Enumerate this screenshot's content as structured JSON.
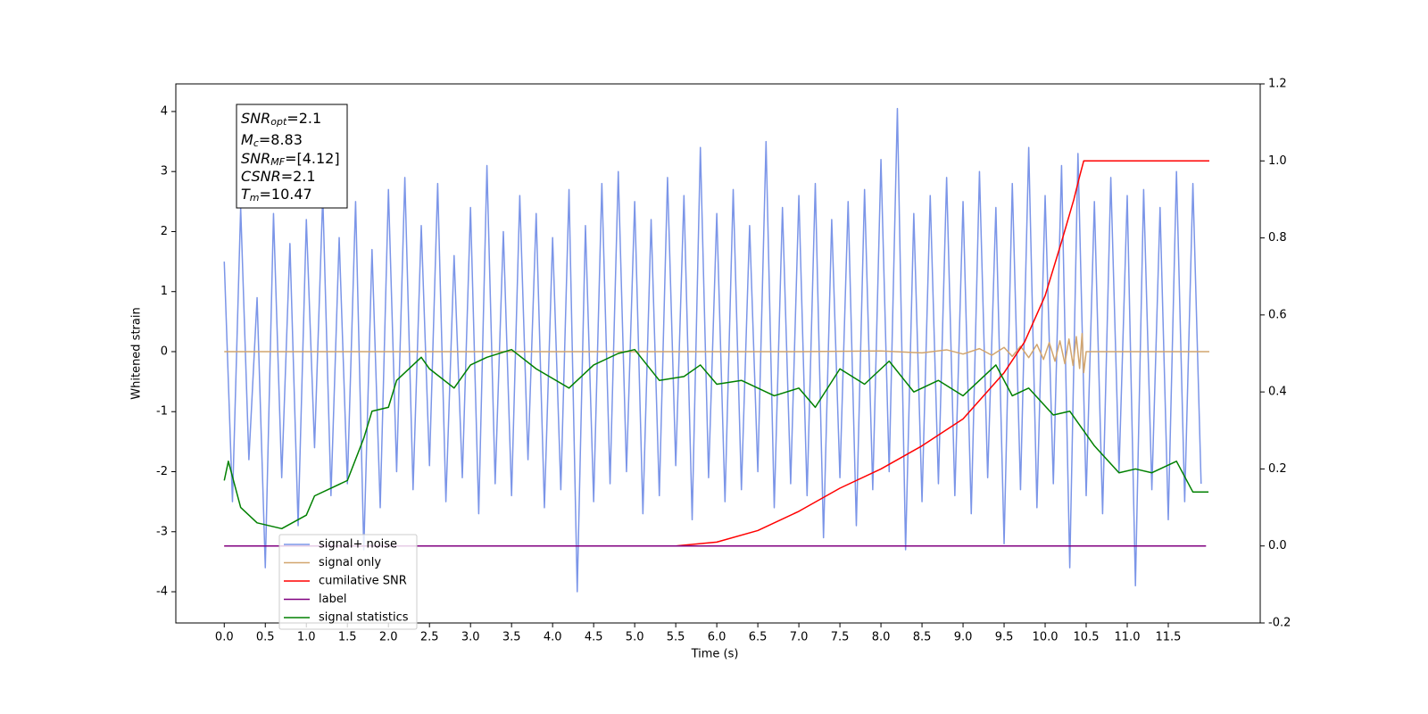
{
  "chart_data": {
    "type": "line",
    "xlabel": "Time (s)",
    "ylabel": "Whitened strain",
    "xlim": [
      -0.59,
      12.62
    ],
    "ylim": [
      -4.52,
      4.46
    ],
    "y2lim": [
      -0.2,
      1.2
    ],
    "xticks": [
      {
        "value": 0,
        "label": "0.0"
      },
      0.5,
      {
        "value": 1,
        "label": "1.0"
      },
      1.5,
      {
        "value": 2,
        "label": "2.0"
      },
      2.5,
      {
        "value": 3,
        "label": "3.0"
      },
      3.5,
      {
        "value": 4,
        "label": "4.0"
      },
      4.5,
      {
        "value": 5,
        "label": "5.0"
      },
      5.5,
      {
        "value": 6,
        "label": "6.0"
      },
      6.5,
      {
        "value": 7,
        "label": "7.0"
      },
      7.5,
      {
        "value": 8,
        "label": "8.0"
      },
      8.5,
      {
        "value": 9,
        "label": "9.0"
      },
      9.5,
      {
        "value": 10,
        "label": "10.0"
      },
      10.5,
      {
        "value": 11,
        "label": "11.0"
      },
      11.5
    ],
    "yticks": [
      -4,
      -3,
      -2,
      -1,
      0,
      1,
      2,
      3,
      4
    ],
    "y2ticks": [
      -0.2,
      {
        "value": 0,
        "label": "0.0"
      },
      0.2,
      0.4,
      0.6,
      0.8,
      {
        "value": 1,
        "label": "1.0"
      },
      1.2
    ],
    "legend": "lower left",
    "annotation": {
      "lines": [
        {
          "base": "SNR",
          "sub": "opt",
          "rest": "=2.1"
        },
        {
          "base": "M",
          "sub": "c",
          "rest": "=8.83"
        },
        {
          "base": "SNR",
          "sub": "MF",
          "rest": "=[4.12]"
        },
        {
          "base": "CSNR",
          "rest": "=2.1"
        },
        {
          "base": "T",
          "sub": "m",
          "rest": "=10.47"
        }
      ]
    },
    "series": [
      {
        "name": "signal+ noise",
        "color": "#7b95e8",
        "x": [
          0.0,
          0.1,
          0.2,
          0.3,
          0.4,
          0.5,
          0.6,
          0.7,
          0.8,
          0.9,
          1.0,
          1.1,
          1.2,
          1.3,
          1.4,
          1.5,
          1.6,
          1.7,
          1.8,
          1.9,
          2.0,
          2.1,
          2.2,
          2.3,
          2.4,
          2.5,
          2.6,
          2.7,
          2.8,
          2.9,
          3.0,
          3.1,
          3.2,
          3.3,
          3.4,
          3.5,
          3.6,
          3.7,
          3.8,
          3.9,
          4.0,
          4.1,
          4.2,
          4.3,
          4.4,
          4.5,
          4.6,
          4.7,
          4.8,
          4.9,
          5.0,
          5.1,
          5.2,
          5.3,
          5.4,
          5.5,
          5.6,
          5.7,
          5.8,
          5.9,
          6.0,
          6.1,
          6.2,
          6.3,
          6.4,
          6.5,
          6.6,
          6.7,
          6.8,
          6.9,
          7.0,
          7.1,
          7.2,
          7.3,
          7.4,
          7.5,
          7.6,
          7.7,
          7.8,
          7.9,
          8.0,
          8.1,
          8.2,
          8.3,
          8.4,
          8.5,
          8.6,
          8.7,
          8.8,
          8.9,
          9.0,
          9.1,
          9.2,
          9.3,
          9.4,
          9.5,
          9.6,
          9.7,
          9.8,
          9.9,
          10.0,
          10.1,
          10.2,
          10.3,
          10.4,
          10.5,
          10.6,
          10.7,
          10.8,
          10.9,
          11.0,
          11.1,
          11.2,
          11.3,
          11.4,
          11.5,
          11.6,
          11.7,
          11.8,
          11.9
        ],
        "values": [
          1.5,
          -2.5,
          2.4,
          -1.8,
          0.9,
          -3.6,
          2.3,
          -2.1,
          1.8,
          -2.9,
          2.2,
          -1.6,
          2.6,
          -2.4,
          1.9,
          -2.2,
          2.5,
          -3.3,
          1.7,
          -2.6,
          2.7,
          -2.0,
          2.9,
          -2.3,
          2.1,
          -1.9,
          2.8,
          -2.5,
          1.6,
          -2.1,
          2.4,
          -2.7,
          3.1,
          -2.2,
          2.0,
          -2.4,
          2.6,
          -1.8,
          2.3,
          -2.6,
          1.9,
          -2.3,
          2.7,
          -4.0,
          2.1,
          -2.5,
          2.8,
          -2.2,
          3.0,
          -2.0,
          2.5,
          -2.7,
          2.2,
          -2.4,
          2.9,
          -1.9,
          2.6,
          -2.8,
          3.4,
          -2.1,
          2.3,
          -2.5,
          2.7,
          -2.3,
          2.1,
          -2.0,
          3.5,
          -2.6,
          2.4,
          -2.2,
          2.6,
          -2.4,
          2.8,
          -3.1,
          2.2,
          -2.1,
          2.5,
          -2.9,
          2.7,
          -2.3,
          3.2,
          -2.0,
          4.05,
          -3.3,
          2.3,
          -2.5,
          2.6,
          -2.2,
          2.9,
          -2.4,
          2.5,
          -2.7,
          3.0,
          -2.1,
          2.4,
          -3.2,
          2.8,
          -2.3,
          3.4,
          -2.6,
          2.6,
          -2.2,
          3.1,
          -3.6,
          3.3,
          -2.4,
          2.5,
          -2.7,
          2.9,
          -2.0,
          2.6,
          -3.9,
          2.7,
          -2.3,
          2.4,
          -2.8,
          3.0,
          -2.5,
          2.8,
          -2.2
        ]
      },
      {
        "name": "signal only",
        "color": "#d2a56e",
        "x": [
          0,
          7.0,
          8.0,
          8.5,
          8.8,
          9.0,
          9.2,
          9.35,
          9.5,
          9.6,
          9.7,
          9.8,
          9.9,
          9.98,
          10.05,
          10.12,
          10.18,
          10.24,
          10.29,
          10.34,
          10.38,
          10.42,
          10.45,
          10.47,
          10.5,
          12.0
        ],
        "values": [
          0,
          0,
          0.01,
          -0.02,
          0.03,
          -0.04,
          0.05,
          -0.06,
          0.07,
          -0.08,
          0.09,
          -0.1,
          0.12,
          -0.13,
          0.15,
          -0.16,
          0.18,
          -0.2,
          0.21,
          -0.23,
          0.25,
          -0.28,
          0.3,
          -0.35,
          0,
          0
        ]
      },
      {
        "name": "cumilative SNR",
        "color": "#ff0000",
        "axis": "y2",
        "x": [
          0,
          5.5,
          6.0,
          6.5,
          7.0,
          7.5,
          8.0,
          8.5,
          9.0,
          9.5,
          9.75,
          10.0,
          10.2,
          10.35,
          10.42,
          10.47,
          12.0
        ],
        "values": [
          0,
          0,
          0.01,
          0.04,
          0.09,
          0.15,
          0.2,
          0.26,
          0.33,
          0.45,
          0.53,
          0.65,
          0.79,
          0.9,
          0.96,
          1.0,
          1.0
        ]
      },
      {
        "name": "label",
        "color": "#800080",
        "axis": "y2",
        "x": [
          0,
          11.96
        ],
        "values": [
          0,
          0
        ]
      },
      {
        "name": "signal statistics",
        "color": "#008000",
        "axis": "y2",
        "x": [
          0,
          0.05,
          0.2,
          0.4,
          0.7,
          1.0,
          1.1,
          1.5,
          1.7,
          1.8,
          2.0,
          2.1,
          2.4,
          2.5,
          2.8,
          3.0,
          3.2,
          3.5,
          3.8,
          4.2,
          4.5,
          4.8,
          5.0,
          5.3,
          5.6,
          5.8,
          6.0,
          6.3,
          6.7,
          7.0,
          7.2,
          7.5,
          7.8,
          8.1,
          8.4,
          8.7,
          9.0,
          9.4,
          9.6,
          9.8,
          10.1,
          10.3,
          10.6,
          10.9,
          11.1,
          11.3,
          11.6,
          11.8,
          11.99
        ],
        "values": [
          0.17,
          0.22,
          0.1,
          0.06,
          0.045,
          0.08,
          0.13,
          0.17,
          0.28,
          0.35,
          0.36,
          0.43,
          0.49,
          0.46,
          0.41,
          0.47,
          0.49,
          0.51,
          0.46,
          0.41,
          0.47,
          0.5,
          0.51,
          0.43,
          0.44,
          0.47,
          0.42,
          0.43,
          0.39,
          0.41,
          0.36,
          0.46,
          0.42,
          0.48,
          0.4,
          0.43,
          0.39,
          0.47,
          0.39,
          0.41,
          0.34,
          0.35,
          0.26,
          0.19,
          0.2,
          0.19,
          0.22,
          0.14,
          0.14
        ]
      }
    ]
  }
}
